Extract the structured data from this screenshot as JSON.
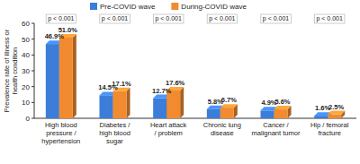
{
  "chart_data": {
    "type": "bar",
    "y_label": "Prevalence rate of illness or\nhealth condition",
    "categories": [
      "High blood\npressure /\nhypertension",
      "Diabetes /\nhigh blood\nsugar",
      "Heart attack\n/ problem",
      "Chronic lung\ndisease",
      "Cancer /\nmalignant tumor",
      "Hip / femoral\nfracture"
    ],
    "series": [
      {
        "name": "Pre-COVID wave",
        "color": "#3b7dd8",
        "values": [
          46.9,
          14.5,
          12.7,
          5.8,
          4.9,
          1.6
        ],
        "value_labels": [
          "46.9%",
          "14.5%",
          "12.7%",
          "5.8%",
          "4.9%",
          "1.6%"
        ]
      },
      {
        "name": "During-COVID wave",
        "color": "#f28b30",
        "values": [
          51.0,
          17.1,
          17.6,
          6.7,
          5.6,
          2.5
        ],
        "value_labels": [
          "51.0%",
          "17.1%",
          "17.6%",
          "6.7%",
          "5.6%",
          "2.5%"
        ]
      }
    ],
    "annotations": [
      "p < 0.001",
      "p < 0.001",
      "p < 0.001",
      "p < 0.001",
      "p < 0.001",
      "p < 0.001"
    ],
    "ylim": [
      0,
      60
    ],
    "yticks": [
      0,
      10,
      20,
      30,
      40,
      50,
      60
    ],
    "grid": false,
    "legend": "top",
    "data_labels": true
  }
}
